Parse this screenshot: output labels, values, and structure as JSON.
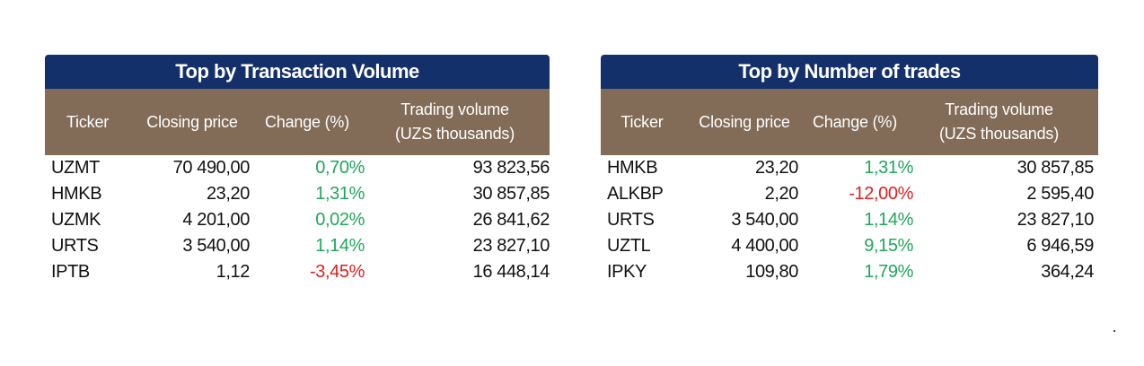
{
  "tables": [
    {
      "title": "Top by Transaction Volume",
      "headers": [
        "Ticker",
        "Closing price",
        "Change (%)",
        "Trading volume",
        "(UZS thousands)"
      ],
      "rows": [
        {
          "ticker": "UZMT",
          "close": "70 490,00",
          "change": "0,70%",
          "volume": "93 823,56",
          "dir": "pos"
        },
        {
          "ticker": "HMKB",
          "close": "23,20",
          "change": "1,31%",
          "volume": "30 857,85",
          "dir": "pos"
        },
        {
          "ticker": "UZMK",
          "close": "4 201,00",
          "change": "0,02%",
          "volume": "26 841,62",
          "dir": "pos"
        },
        {
          "ticker": "URTS",
          "close": "3 540,00",
          "change": "1,14%",
          "volume": "23 827,10",
          "dir": "pos"
        },
        {
          "ticker": "IPTB",
          "close": "1,12",
          "change": "-3,45%",
          "volume": "16 448,14",
          "dir": "neg"
        }
      ]
    },
    {
      "title": "Top by Number of trades",
      "headers": [
        "Ticker",
        "Closing price",
        "Change (%)",
        "Trading volume",
        "(UZS thousands)"
      ],
      "rows": [
        {
          "ticker": "HMKB",
          "close": "23,20",
          "change": "1,31%",
          "volume": "30 857,85",
          "dir": "pos"
        },
        {
          "ticker": "ALKBP",
          "close": "2,20",
          "change": "-12,00%",
          "volume": "2 595,40",
          "dir": "neg"
        },
        {
          "ticker": "URTS",
          "close": "3 540,00",
          "change": "1,14%",
          "volume": "23 827,10",
          "dir": "pos"
        },
        {
          "ticker": "UZTL",
          "close": "4 400,00",
          "change": "9,15%",
          "volume": "6 946,59",
          "dir": "pos"
        },
        {
          "ticker": "IPKY",
          "close": "109,80",
          "change": "1,79%",
          "volume": "364,24",
          "dir": "pos"
        }
      ]
    }
  ],
  "colors": {
    "title_bg": "#14306a",
    "header_bg": "#826c58",
    "positive": "#1fa85a",
    "negative": "#e31d1d"
  }
}
